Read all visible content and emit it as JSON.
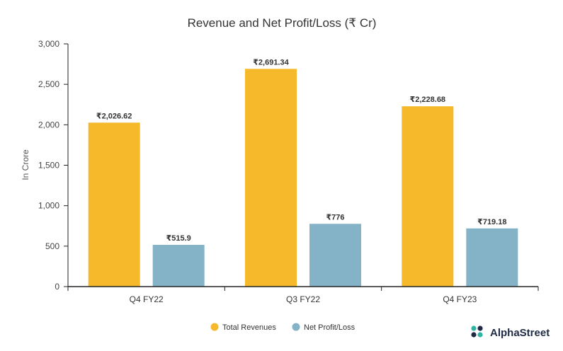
{
  "chart_data": {
    "type": "bar",
    "title": "Revenue and Net Profit/Loss (₹ Cr)",
    "xlabel": "",
    "ylabel": "In Crore",
    "ylim": [
      0,
      3000
    ],
    "yticks": [
      0,
      500,
      1000,
      1500,
      2000,
      2500,
      3000
    ],
    "ytick_labels": [
      "0",
      "500",
      "1,000",
      "1,500",
      "2,000",
      "2,500",
      "3,000"
    ],
    "categories": [
      "Q4 FY22",
      "Q3 FY22",
      "Q4 FY23"
    ],
    "series": [
      {
        "name": "Total Revenues",
        "color": "#f5b92b",
        "values": [
          2026.62,
          2691.34,
          2228.68
        ],
        "labels": [
          "₹2,026.62",
          "₹2,691.34",
          "₹2,228.68"
        ]
      },
      {
        "name": "Net Profit/Loss",
        "color": "#84b3c8",
        "values": [
          515.9,
          776,
          719.18
        ],
        "labels": [
          "₹515.9",
          "₹776",
          "₹719.18"
        ]
      }
    ],
    "legend_position": "bottom-center",
    "grid": false
  },
  "brand": {
    "name": "AlphaStreet",
    "icon": "alphastreet-logo-icon",
    "colors": [
      "#1f2a44",
      "#2fb3a3"
    ]
  }
}
